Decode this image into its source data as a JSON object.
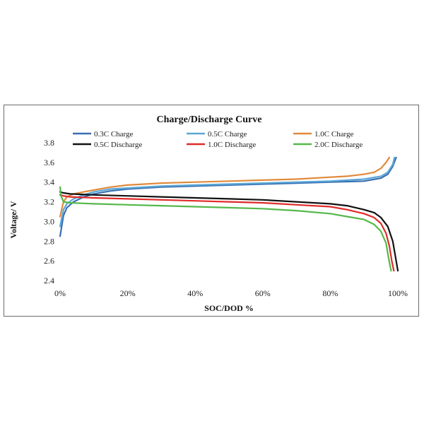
{
  "chart_data": {
    "type": "line",
    "title": "Charge/Discharge Curve",
    "xlabel": "SOC/DOD %",
    "ylabel": "Voltage/ V",
    "xlim": [
      0,
      100
    ],
    "ylim": [
      2.4,
      3.8
    ],
    "x_ticks": [
      "0%",
      "20%",
      "40%",
      "60%",
      "80%",
      "100%"
    ],
    "y_ticks": [
      "2.4",
      "2.6",
      "2.8",
      "3.0",
      "3.2",
      "3.4",
      "3.6",
      "3.8"
    ],
    "grid": false,
    "legend_position": "top",
    "series": [
      {
        "name": "0.3C Charge",
        "color": "#3a6fb3",
        "x": [
          0,
          1,
          2,
          4,
          7,
          10,
          15,
          20,
          30,
          40,
          50,
          60,
          70,
          80,
          90,
          95,
          97,
          98.5,
          99.5
        ],
        "y": [
          2.85,
          3.06,
          3.14,
          3.2,
          3.25,
          3.28,
          3.31,
          3.33,
          3.35,
          3.36,
          3.37,
          3.38,
          3.39,
          3.4,
          3.41,
          3.44,
          3.48,
          3.56,
          3.65
        ]
      },
      {
        "name": "0.5C Charge",
        "color": "#5aa8d6",
        "x": [
          0,
          1,
          2,
          4,
          7,
          10,
          15,
          20,
          30,
          40,
          50,
          60,
          70,
          80,
          90,
          95,
          97,
          98.5,
          99
        ],
        "y": [
          2.95,
          3.12,
          3.18,
          3.23,
          3.27,
          3.3,
          3.33,
          3.34,
          3.36,
          3.37,
          3.38,
          3.39,
          3.4,
          3.41,
          3.43,
          3.46,
          3.5,
          3.58,
          3.65
        ]
      },
      {
        "name": "1.0C Charge",
        "color": "#e08a3c",
        "x": [
          0,
          1,
          2,
          4,
          7,
          10,
          15,
          20,
          30,
          40,
          50,
          60,
          70,
          80,
          85,
          90,
          93,
          95,
          96.5,
          97.5
        ],
        "y": [
          3.05,
          3.2,
          3.25,
          3.28,
          3.3,
          3.32,
          3.35,
          3.37,
          3.39,
          3.4,
          3.41,
          3.42,
          3.43,
          3.45,
          3.46,
          3.48,
          3.5,
          3.54,
          3.6,
          3.65
        ]
      },
      {
        "name": "0.5C Discharge",
        "color": "#111111",
        "x": [
          0,
          1,
          3,
          10,
          20,
          30,
          40,
          50,
          60,
          70,
          80,
          85,
          90,
          93,
          95,
          97,
          98.5,
          99.5,
          100
        ],
        "y": [
          3.3,
          3.29,
          3.28,
          3.27,
          3.26,
          3.25,
          3.24,
          3.23,
          3.22,
          3.2,
          3.18,
          3.16,
          3.12,
          3.09,
          3.04,
          2.95,
          2.8,
          2.6,
          2.5
        ]
      },
      {
        "name": "1.0C Discharge",
        "color": "#e02a2a",
        "x": [
          0,
          1,
          3,
          10,
          20,
          30,
          40,
          50,
          60,
          70,
          80,
          85,
          90,
          93,
          95,
          96.5,
          97.5,
          98.2,
          98.8
        ],
        "y": [
          3.27,
          3.26,
          3.25,
          3.24,
          3.23,
          3.22,
          3.21,
          3.2,
          3.19,
          3.17,
          3.15,
          3.12,
          3.08,
          3.04,
          2.98,
          2.88,
          2.75,
          2.6,
          2.5
        ]
      },
      {
        "name": "2.0C Discharge",
        "color": "#55b84a",
        "x": [
          0,
          0.3,
          1,
          3,
          10,
          20,
          30,
          40,
          50,
          60,
          70,
          80,
          85,
          90,
          93,
          95,
          96.5,
          97.3,
          98
        ],
        "y": [
          3.35,
          3.26,
          3.2,
          3.19,
          3.18,
          3.17,
          3.16,
          3.15,
          3.14,
          3.13,
          3.11,
          3.08,
          3.05,
          3.02,
          2.97,
          2.9,
          2.78,
          2.62,
          2.5
        ]
      }
    ]
  }
}
